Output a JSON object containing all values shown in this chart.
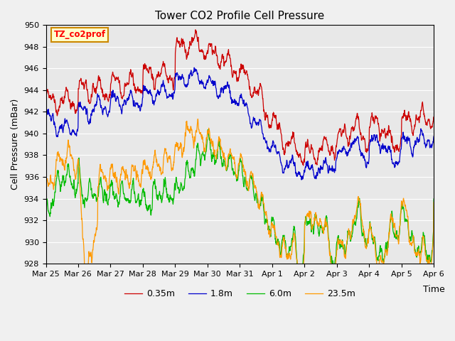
{
  "title": "Tower CO2 Profile Cell Pressure",
  "xlabel": "Time",
  "ylabel": "Cell Pressure (mBar)",
  "ylim": [
    928,
    950
  ],
  "fig_bg": "#f0f0f0",
  "plot_bg": "#e8e8e8",
  "legend_label": "TZ_co2prof",
  "legend_box_facecolor": "#ffffcc",
  "legend_box_edgecolor": "#cc8800",
  "series_labels": [
    "0.35m",
    "1.8m",
    "6.0m",
    "23.5m"
  ],
  "series_colors": [
    "#cc0000",
    "#0000cc",
    "#00bb00",
    "#ff9900"
  ],
  "series_linewidth": 0.9,
  "grid_color": "#ffffff",
  "yticks": [
    928,
    930,
    932,
    934,
    936,
    938,
    940,
    942,
    944,
    946,
    948,
    950
  ],
  "tick_label_fontsize": 8,
  "title_fontsize": 11,
  "axis_label_fontsize": 9
}
